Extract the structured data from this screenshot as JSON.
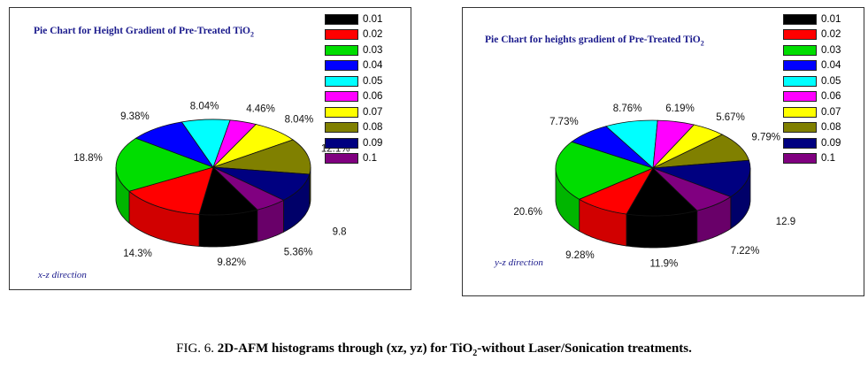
{
  "colors": [
    "#000000",
    "#ff0000",
    "#00dd00",
    "#0000ff",
    "#00ffff",
    "#ff00ff",
    "#ffff00",
    "#808000",
    "#000080",
    "#800080"
  ],
  "chart_data": [
    {
      "type": "pie",
      "title": "Pie Chart for Height Gradient of Pre-Treated TiO",
      "title_sub": "2",
      "direction_label": "x-z direction",
      "legend": [
        "0.01",
        "0.02",
        "0.03",
        "0.04",
        "0.05",
        "0.06",
        "0.07",
        "0.08",
        "0.09",
        "0.1"
      ],
      "labels": [
        "9.82%",
        "14.3%",
        "18.8%",
        "9.38%",
        "8.04%",
        "4.46%",
        "8.04%",
        "12.1%",
        "9.8",
        "5.36%"
      ],
      "values": [
        9.82,
        14.3,
        18.8,
        9.38,
        8.04,
        4.46,
        8.04,
        12.1,
        9.8,
        5.36
      ]
    },
    {
      "type": "pie",
      "title": "Pie Chart for heights gradient of Pre-Treated TiO",
      "title_sub": "2",
      "direction_label": "y-z direction",
      "legend": [
        "0.01",
        "0.02",
        "0.03",
        "0.04",
        "0.05",
        "0.06",
        "0.07",
        "0.08",
        "0.09",
        "0.1"
      ],
      "labels": [
        "11.9%",
        "9.28%",
        "20.6%",
        "7.73%",
        "8.76%",
        "6.19%",
        "5.67%",
        "9.79%",
        "12.9",
        "7.22%"
      ],
      "values": [
        11.9,
        9.28,
        20.6,
        7.73,
        8.76,
        6.19,
        5.67,
        9.79,
        12.9,
        7.22
      ]
    }
  ],
  "caption": {
    "prefix": "FIG. 6. ",
    "bold_main": "2D-AFM histograms through (xz, yz) for TiO",
    "bold_sub": "2",
    "bold_end": "-without Laser/Sonication treatments."
  }
}
